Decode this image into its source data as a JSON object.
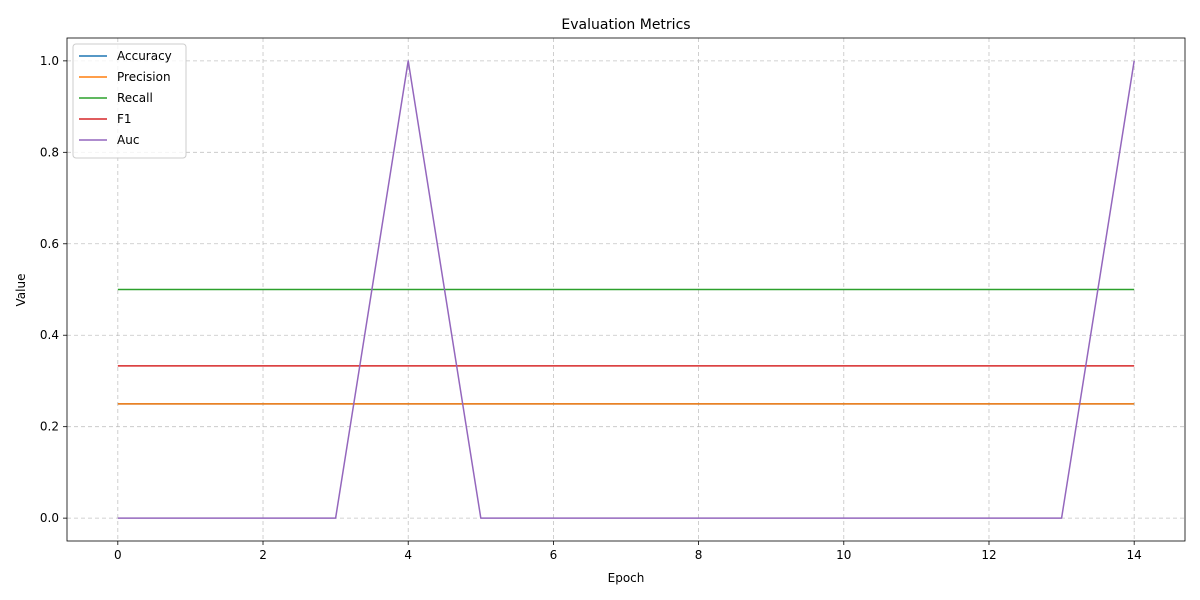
{
  "chart_data": {
    "type": "line",
    "title": "Evaluation Metrics",
    "xlabel": "Epoch",
    "ylabel": "Value",
    "xlim": [
      -0.7,
      14.7
    ],
    "ylim": [
      -0.05,
      1.05
    ],
    "xticks": [
      0,
      2,
      4,
      6,
      8,
      10,
      12,
      14
    ],
    "xtick_labels": [
      "0",
      "2",
      "4",
      "6",
      "8",
      "10",
      "12",
      "14"
    ],
    "yticks": [
      0.0,
      0.2,
      0.4,
      0.6,
      0.8,
      1.0
    ],
    "ytick_labels": [
      "0.0",
      "0.2",
      "0.4",
      "0.6",
      "0.8",
      "1.0"
    ],
    "grid": true,
    "legend_position": "top-left",
    "x": [
      0,
      1,
      2,
      3,
      4,
      5,
      6,
      7,
      8,
      9,
      10,
      11,
      12,
      13,
      14
    ],
    "series": [
      {
        "name": "Accuracy",
        "color": "#1f77b4",
        "values": [
          0.25,
          0.25,
          0.25,
          0.25,
          0.25,
          0.25,
          0.25,
          0.25,
          0.25,
          0.25,
          0.25,
          0.25,
          0.25,
          0.25,
          0.25
        ]
      },
      {
        "name": "Precision",
        "color": "#ff7f0e",
        "values": [
          0.25,
          0.25,
          0.25,
          0.25,
          0.25,
          0.25,
          0.25,
          0.25,
          0.25,
          0.25,
          0.25,
          0.25,
          0.25,
          0.25,
          0.25
        ]
      },
      {
        "name": "Recall",
        "color": "#2ca02c",
        "values": [
          0.5,
          0.5,
          0.5,
          0.5,
          0.5,
          0.5,
          0.5,
          0.5,
          0.5,
          0.5,
          0.5,
          0.5,
          0.5,
          0.5,
          0.5
        ]
      },
      {
        "name": "F1",
        "color": "#d62728",
        "values": [
          0.333,
          0.333,
          0.333,
          0.333,
          0.333,
          0.333,
          0.333,
          0.333,
          0.333,
          0.333,
          0.333,
          0.333,
          0.333,
          0.333,
          0.333
        ]
      },
      {
        "name": "Auc",
        "color": "#9467bd",
        "values": [
          0,
          0,
          0,
          0,
          1,
          0,
          0,
          0,
          0,
          0,
          0,
          0,
          0,
          0,
          1
        ]
      }
    ]
  }
}
